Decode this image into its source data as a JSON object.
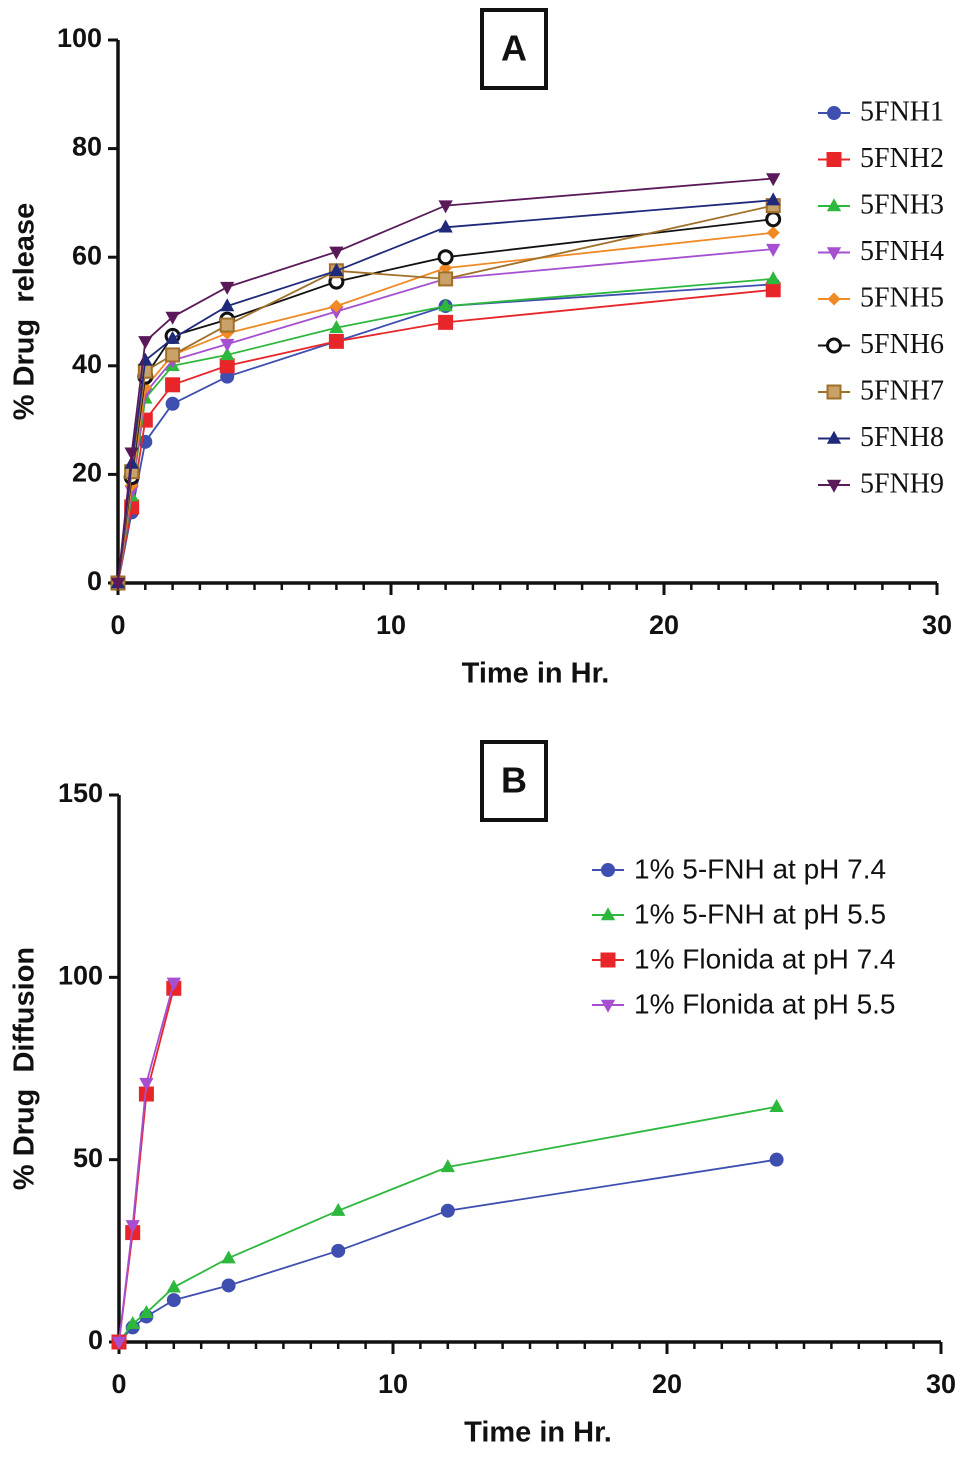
{
  "chart_data": [
    {
      "type": "line",
      "panel_label": "A",
      "xlabel": "Time in Hr.",
      "ylabel": "% Drug  release",
      "xlim": [
        0,
        30
      ],
      "xticks": [
        0,
        10,
        20,
        30
      ],
      "x_minor_step": 1,
      "ylim": [
        0,
        100
      ],
      "yticks": [
        0,
        20,
        40,
        60,
        80,
        100
      ],
      "legend": "top-right",
      "legend_font": "serif",
      "x": [
        0,
        0.5,
        1,
        2,
        4,
        8,
        12,
        24
      ],
      "series": [
        {
          "name": "5FNH1",
          "color": "#3f4fb0",
          "marker": "circle",
          "values": [
            0,
            13,
            26,
            33,
            38,
            44.5,
            51,
            55
          ]
        },
        {
          "name": "5FNH2",
          "color": "#e8262a",
          "marker": "square",
          "values": [
            0,
            14,
            30,
            36.5,
            40,
            44.5,
            48,
            54
          ]
        },
        {
          "name": "5FNH3",
          "color": "#2db83d",
          "marker": "triangle",
          "values": [
            0,
            16,
            34,
            40,
            42,
            47,
            51,
            56
          ]
        },
        {
          "name": "5FNH4",
          "color": "#a64fd1",
          "marker": "triangle-down",
          "values": [
            0,
            17,
            35,
            41,
            44,
            50,
            56,
            61.5
          ]
        },
        {
          "name": "5FNH5",
          "color": "#f08a24",
          "marker": "diamond",
          "values": [
            0,
            18,
            36,
            42,
            46,
            51,
            58,
            64.5
          ]
        },
        {
          "name": "5FNH6",
          "color": "#111111",
          "marker": "open-circle",
          "values": [
            0,
            19.5,
            38,
            45.5,
            48.5,
            55.5,
            60,
            67
          ]
        },
        {
          "name": "5FNH7",
          "color": "#a0702a",
          "marker": "open-square",
          "values": [
            0,
            20.5,
            39,
            42,
            47.5,
            57.5,
            56,
            69.5
          ]
        },
        {
          "name": "5FNH8",
          "color": "#1f2a7a",
          "marker": "triangle",
          "values": [
            0,
            22,
            41,
            45,
            51,
            57.5,
            65.5,
            70.5
          ]
        },
        {
          "name": "5FNH9",
          "color": "#5a1a5a",
          "marker": "triangle-down",
          "values": [
            0,
            24,
            44.5,
            49,
            54.5,
            61,
            69.5,
            74.5
          ]
        }
      ]
    },
    {
      "type": "line",
      "panel_label": "B",
      "xlabel": "Time in Hr.",
      "ylabel": "% Drug  Diffusion",
      "xlim": [
        0,
        30
      ],
      "xticks": [
        0,
        10,
        20,
        30
      ],
      "x_minor_step": 1,
      "ylim": [
        0,
        150
      ],
      "yticks": [
        0,
        50,
        100,
        150
      ],
      "legend": "top-right",
      "legend_font": "sans-serif",
      "series": [
        {
          "name": "1% 5-FNH at pH 7.4",
          "color": "#3f4fb0",
          "marker": "circle",
          "x": [
            0,
            0.5,
            1,
            2,
            4,
            8,
            12,
            24
          ],
          "values": [
            0,
            4,
            7,
            11.5,
            15.5,
            25,
            36,
            50
          ]
        },
        {
          "name": "1% 5-FNH at pH 5.5",
          "color": "#2db83d",
          "marker": "triangle",
          "x": [
            0,
            0.5,
            1,
            2,
            4,
            8,
            12,
            24
          ],
          "values": [
            0,
            5,
            8,
            15,
            23,
            36,
            48,
            64.5
          ]
        },
        {
          "name": "1% Flonida at pH 7.4",
          "color": "#e8262a",
          "marker": "square",
          "x": [
            0,
            0.5,
            1,
            2
          ],
          "values": [
            0,
            30,
            68,
            97
          ]
        },
        {
          "name": "1% Flonida at pH 5.5",
          "color": "#a64fd1",
          "marker": "triangle-down",
          "x": [
            0,
            0.5,
            1,
            2
          ],
          "values": [
            0,
            32,
            71,
            98.5
          ]
        }
      ]
    }
  ]
}
